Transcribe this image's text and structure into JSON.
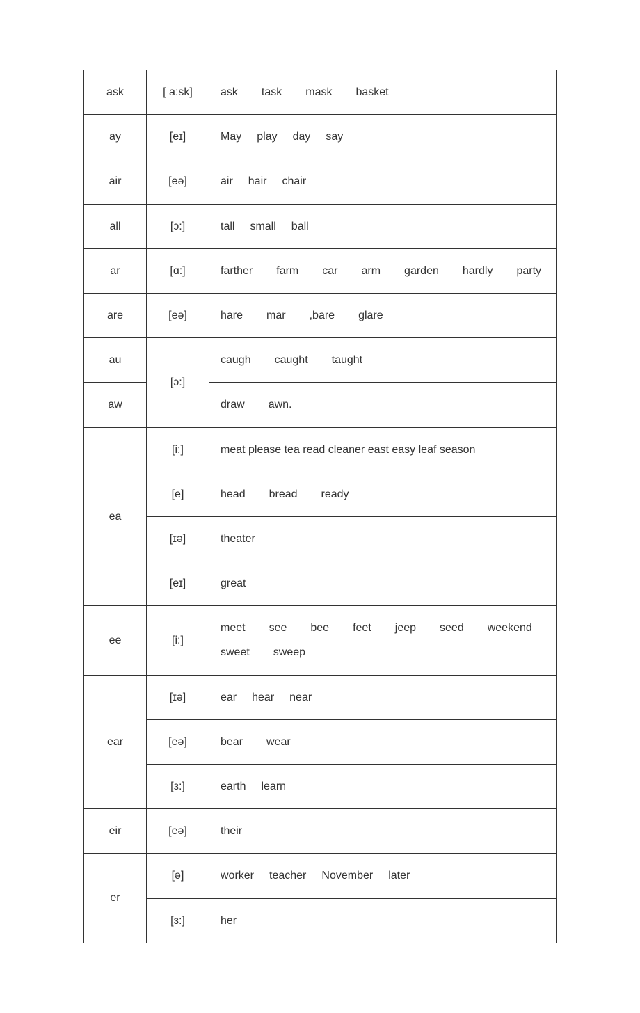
{
  "rows": [
    {
      "letters": "ask",
      "ipa": "[ a:sk]",
      "examples": [
        "ask",
        "task",
        "mask",
        "basket"
      ],
      "spacing": "wl"
    },
    {
      "letters": "ay",
      "ipa": "[eɪ]",
      "examples": [
        "May",
        "play",
        "day",
        "say"
      ],
      "spacing": "ws"
    },
    {
      "letters": "air",
      "ipa": "[eə]",
      "examples": [
        "air",
        "hair",
        "chair"
      ],
      "spacing": "ws"
    },
    {
      "letters": "all",
      "ipa": "[ɔ:]",
      "examples": [
        "tall",
        "small",
        "ball"
      ],
      "spacing": "ws"
    },
    {
      "letters": "ar",
      "ipa": "[ɑ:]",
      "examples": [
        "farther",
        "farm",
        "car",
        "arm",
        "garden",
        "hardly",
        "party"
      ],
      "spacing": "wl"
    },
    {
      "letters": "are",
      "ipa": "[eə]",
      "examples_raw": "hare<span class=\"wl\"></span>mar<span class=\"wl\"></span>,bare<span class=\"wl\"></span>glare"
    },
    {
      "letters": "au",
      "ipa": "[ɔ:]",
      "ipa_rowspan": 2,
      "examples": [
        "caugh",
        "caught",
        "taught"
      ],
      "spacing": "wl"
    },
    {
      "letters": "aw",
      "examples_raw": "draw<span class=\"wl\"></span>awn."
    },
    {
      "letters": "ea",
      "letters_rowspan": 4,
      "ipa": "[i:]",
      "examples": [
        "meat",
        "please",
        "tea",
        "read",
        "cleaner",
        "east",
        "easy",
        "leaf",
        "season"
      ],
      "spacing": "narrow"
    },
    {
      "ipa": "[e]",
      "examples": [
        "head",
        "bread",
        "ready"
      ],
      "spacing": "wl"
    },
    {
      "ipa": "[ɪə]",
      "examples": [
        "theater"
      ],
      "spacing": "ws"
    },
    {
      "ipa": "[eɪ]",
      "examples": [
        "great"
      ],
      "spacing": "ws"
    },
    {
      "letters": "ee",
      "ipa": "[i:]",
      "examples_raw": "meet<span class=\"wl\"></span>see<span class=\"wl\"></span>bee<span class=\"wl\"></span>feet<span class=\"wl\"></span>jeep<span class=\"wl\"></span>seed<span class=\"wl\"></span>weekend sweet<span class=\"wl\"></span>sweep"
    },
    {
      "letters": "ear",
      "letters_rowspan": 3,
      "ipa": "[ɪə]",
      "examples": [
        "ear",
        "hear",
        "near"
      ],
      "spacing": "ws"
    },
    {
      "ipa": "[eə]",
      "examples": [
        "bear",
        "wear"
      ],
      "spacing": "wl"
    },
    {
      "ipa": "[ɜ:]",
      "examples": [
        "earth",
        "learn"
      ],
      "spacing": "ws"
    },
    {
      "letters": "eir",
      "ipa": "[eə]",
      "examples": [
        "their"
      ],
      "spacing": "ws"
    },
    {
      "letters": "er",
      "letters_rowspan": 2,
      "ipa": "[ə]",
      "examples": [
        "worker",
        "teacher",
        "November",
        "later"
      ],
      "spacing": "ws"
    },
    {
      "ipa": "[ɜ:]",
      "examples": [
        "her"
      ],
      "spacing": "ws"
    }
  ],
  "colors": {
    "border": "#333333",
    "text": "#333333",
    "background": "#ffffff"
  }
}
